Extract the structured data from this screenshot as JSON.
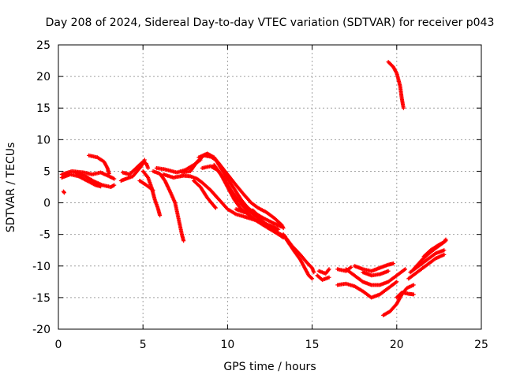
{
  "chart_data": {
    "type": "scatter",
    "title": "Day 208 of 2024, Sidereal Day-to-day VTEC variation (SDTVAR) for receiver p043",
    "xlabel": "GPS time / hours",
    "ylabel": "SDTVAR / TECUs",
    "xlim": [
      0,
      25
    ],
    "ylim": [
      -20,
      25
    ],
    "xticks": [
      "0",
      "5",
      "10",
      "15",
      "20",
      "25"
    ],
    "yticks": [
      "-20",
      "-15",
      "-10",
      "-5",
      "0",
      "5",
      "10",
      "15",
      "20",
      "25"
    ],
    "grid": true,
    "marker": "+",
    "color": "#ff0000",
    "series": [
      {
        "name": "arc-1",
        "points": [
          [
            0.2,
            4.5
          ],
          [
            0.8,
            5.0
          ],
          [
            1.5,
            4.8
          ],
          [
            2.0,
            4.5
          ],
          [
            2.5,
            4.8
          ],
          [
            3.0,
            4.2
          ],
          [
            3.3,
            3.8
          ]
        ]
      },
      {
        "name": "arc-2",
        "points": [
          [
            0.2,
            4.0
          ],
          [
            0.7,
            4.5
          ],
          [
            1.2,
            4.2
          ],
          [
            1.7,
            3.5
          ],
          [
            2.2,
            2.8
          ],
          [
            2.5,
            2.6
          ]
        ]
      },
      {
        "name": "arc-3",
        "points": [
          [
            0.3,
            1.8
          ],
          [
            0.35,
            1.6
          ]
        ]
      },
      {
        "name": "arc-4",
        "points": [
          [
            1.0,
            4.8
          ],
          [
            1.6,
            4.2
          ],
          [
            2.1,
            3.4
          ],
          [
            2.6,
            2.8
          ],
          [
            3.1,
            2.5
          ],
          [
            3.3,
            2.8
          ]
        ]
      },
      {
        "name": "arc-5",
        "points": [
          [
            1.8,
            7.5
          ],
          [
            2.3,
            7.2
          ],
          [
            2.7,
            6.5
          ],
          [
            2.9,
            5.5
          ],
          [
            3.0,
            4.6
          ]
        ]
      },
      {
        "name": "arc-6",
        "points": [
          [
            3.8,
            4.8
          ],
          [
            4.2,
            4.5
          ],
          [
            4.6,
            5.5
          ],
          [
            5.0,
            6.5
          ],
          [
            5.2,
            6.2
          ],
          [
            5.3,
            5.5
          ]
        ]
      },
      {
        "name": "arc-7",
        "points": [
          [
            3.7,
            3.5
          ],
          [
            4.0,
            3.8
          ],
          [
            4.4,
            4.2
          ],
          [
            4.9,
            5.8
          ],
          [
            5.1,
            6.8
          ]
        ]
      },
      {
        "name": "arc-8",
        "points": [
          [
            5.0,
            5.0
          ],
          [
            5.3,
            4.0
          ],
          [
            5.5,
            2.5
          ],
          [
            5.7,
            0.5
          ],
          [
            5.9,
            -1.0
          ],
          [
            6.0,
            -2.0
          ]
        ]
      },
      {
        "name": "arc-9",
        "points": [
          [
            4.8,
            3.5
          ],
          [
            5.2,
            2.8
          ],
          [
            5.6,
            2.0
          ]
        ]
      },
      {
        "name": "arc-10",
        "points": [
          [
            5.6,
            5.0
          ],
          [
            6.0,
            4.6
          ],
          [
            6.3,
            3.5
          ],
          [
            6.6,
            1.8
          ],
          [
            6.9,
            0.0
          ],
          [
            7.1,
            -2.5
          ],
          [
            7.3,
            -5.0
          ],
          [
            7.4,
            -6.0
          ]
        ]
      },
      {
        "name": "arc-11",
        "points": [
          [
            5.8,
            5.5
          ],
          [
            6.3,
            5.3
          ],
          [
            7.0,
            4.8
          ],
          [
            7.5,
            5.2
          ],
          [
            8.0,
            6.0
          ],
          [
            8.4,
            6.8
          ]
        ]
      },
      {
        "name": "arc-12",
        "points": [
          [
            6.2,
            4.5
          ],
          [
            6.8,
            4.0
          ],
          [
            7.4,
            4.3
          ],
          [
            7.8,
            4.2
          ],
          [
            8.2,
            3.8
          ],
          [
            8.5,
            3.2
          ],
          [
            9.0,
            2.0
          ],
          [
            9.5,
            0.5
          ],
          [
            10.0,
            -1.0
          ],
          [
            10.5,
            -1.8
          ],
          [
            11.0,
            -2.2
          ],
          [
            11.6,
            -2.7
          ],
          [
            12.2,
            -3.3
          ],
          [
            12.7,
            -3.8
          ],
          [
            13.0,
            -4.2
          ]
        ]
      },
      {
        "name": "arc-13",
        "points": [
          [
            7.3,
            4.8
          ],
          [
            7.8,
            5.0
          ],
          [
            8.2,
            6.5
          ],
          [
            8.6,
            7.5
          ],
          [
            9.0,
            7.3
          ],
          [
            9.3,
            6.8
          ],
          [
            9.6,
            5.5
          ],
          [
            10.0,
            3.8
          ],
          [
            10.4,
            2.2
          ],
          [
            10.8,
            0.5
          ],
          [
            11.2,
            -0.8
          ],
          [
            11.6,
            -1.6
          ],
          [
            12.1,
            -2.4
          ],
          [
            12.7,
            -3.2
          ],
          [
            13.2,
            -3.8
          ]
        ]
      },
      {
        "name": "arc-14",
        "points": [
          [
            8.3,
            7.2
          ],
          [
            8.8,
            7.8
          ],
          [
            9.2,
            7.2
          ],
          [
            9.5,
            6.2
          ],
          [
            10.0,
            4.5
          ],
          [
            10.5,
            2.8
          ],
          [
            11.0,
            1.2
          ],
          [
            11.4,
            0.0
          ],
          [
            11.8,
            -0.8
          ],
          [
            12.3,
            -1.5
          ],
          [
            12.8,
            -2.5
          ],
          [
            13.2,
            -3.5
          ],
          [
            13.3,
            -4.0
          ]
        ]
      },
      {
        "name": "arc-15",
        "points": [
          [
            8.5,
            5.5
          ],
          [
            9.0,
            5.8
          ],
          [
            9.4,
            5.2
          ],
          [
            9.8,
            3.8
          ],
          [
            10.2,
            2.0
          ],
          [
            10.6,
            0.5
          ],
          [
            11.0,
            -0.8
          ],
          [
            11.5,
            -1.8
          ],
          [
            12.0,
            -2.8
          ],
          [
            12.5,
            -3.8
          ],
          [
            13.0,
            -4.8
          ],
          [
            13.4,
            -5.3
          ]
        ]
      },
      {
        "name": "arc-16",
        "points": [
          [
            8.0,
            3.5
          ],
          [
            8.4,
            2.5
          ],
          [
            8.8,
            0.8
          ],
          [
            9.2,
            -0.5
          ],
          [
            9.3,
            -0.8
          ]
        ]
      },
      {
        "name": "arc-17",
        "points": [
          [
            9.2,
            6.0
          ],
          [
            9.6,
            4.5
          ],
          [
            10.0,
            2.5
          ],
          [
            10.4,
            0.5
          ],
          [
            10.8,
            -1.0
          ],
          [
            11.3,
            -2.0
          ],
          [
            11.8,
            -3.0
          ],
          [
            12.4,
            -4.0
          ],
          [
            12.9,
            -4.8
          ],
          [
            13.3,
            -5.5
          ]
        ]
      },
      {
        "name": "arc-18",
        "points": [
          [
            10.5,
            -1.0
          ],
          [
            11.0,
            -1.5
          ],
          [
            11.5,
            -1.2
          ],
          [
            11.8,
            -2.0
          ]
        ]
      },
      {
        "name": "arc-19",
        "points": [
          [
            13.3,
            -5.0
          ],
          [
            13.8,
            -6.8
          ],
          [
            14.3,
            -8.2
          ],
          [
            14.7,
            -9.5
          ],
          [
            15.0,
            -10.3
          ],
          [
            15.1,
            -11.0
          ]
        ]
      },
      {
        "name": "arc-20",
        "points": [
          [
            13.4,
            -5.5
          ],
          [
            13.9,
            -7.5
          ],
          [
            14.3,
            -9.0
          ],
          [
            14.6,
            -10.5
          ],
          [
            14.8,
            -11.5
          ],
          [
            15.0,
            -12.0
          ]
        ]
      },
      {
        "name": "arc-21",
        "points": [
          [
            15.3,
            -11.5
          ],
          [
            15.6,
            -12.2
          ],
          [
            16.0,
            -11.8
          ]
        ]
      },
      {
        "name": "arc-22",
        "points": [
          [
            15.4,
            -10.8
          ],
          [
            15.8,
            -11.2
          ],
          [
            16.0,
            -10.5
          ]
        ]
      },
      {
        "name": "arc-23",
        "points": [
          [
            16.5,
            -10.5
          ],
          [
            17.0,
            -10.8
          ],
          [
            17.3,
            -10.2
          ]
        ]
      },
      {
        "name": "arc-24",
        "points": [
          [
            16.5,
            -13.0
          ],
          [
            17.0,
            -12.8
          ],
          [
            17.5,
            -13.2
          ],
          [
            18.0,
            -14.0
          ],
          [
            18.5,
            -15.0
          ],
          [
            19.0,
            -14.5
          ],
          [
            19.5,
            -13.5
          ],
          [
            20.0,
            -12.5
          ]
        ]
      },
      {
        "name": "arc-25",
        "points": [
          [
            17.0,
            -10.5
          ],
          [
            17.5,
            -11.5
          ],
          [
            18.0,
            -12.5
          ],
          [
            18.5,
            -13.0
          ],
          [
            19.0,
            -13.0
          ],
          [
            19.5,
            -12.5
          ],
          [
            20.0,
            -11.5
          ],
          [
            20.5,
            -10.5
          ]
        ]
      },
      {
        "name": "arc-26",
        "points": [
          [
            17.5,
            -10.0
          ],
          [
            18.0,
            -10.5
          ],
          [
            18.5,
            -10.8
          ],
          [
            19.0,
            -10.3
          ],
          [
            19.5,
            -9.8
          ],
          [
            19.8,
            -9.6
          ]
        ]
      },
      {
        "name": "arc-27",
        "points": [
          [
            18.0,
            -11.0
          ],
          [
            18.5,
            -11.5
          ],
          [
            19.0,
            -11.3
          ],
          [
            19.5,
            -10.8
          ]
        ]
      },
      {
        "name": "arc-28",
        "points": [
          [
            19.2,
            -17.8
          ],
          [
            19.6,
            -17.2
          ],
          [
            20.0,
            -16.0
          ],
          [
            20.3,
            -14.5
          ],
          [
            20.6,
            -13.5
          ],
          [
            21.0,
            -13.0
          ]
        ]
      },
      {
        "name": "arc-29",
        "points": [
          [
            20.0,
            -15.0
          ],
          [
            20.3,
            -14.2
          ],
          [
            20.7,
            -14.4
          ],
          [
            21.0,
            -14.5
          ]
        ]
      },
      {
        "name": "arc-30",
        "points": [
          [
            20.8,
            -11.0
          ],
          [
            21.3,
            -10.0
          ],
          [
            21.8,
            -9.0
          ],
          [
            22.3,
            -8.0
          ],
          [
            22.8,
            -7.5
          ]
        ]
      },
      {
        "name": "arc-31",
        "points": [
          [
            20.7,
            -12.0
          ],
          [
            21.2,
            -11.0
          ],
          [
            21.8,
            -9.8
          ],
          [
            22.3,
            -8.8
          ],
          [
            22.8,
            -8.2
          ]
        ]
      },
      {
        "name": "arc-32",
        "points": [
          [
            21.0,
            -10.5
          ],
          [
            21.5,
            -9.0
          ],
          [
            22.0,
            -7.8
          ],
          [
            22.5,
            -6.8
          ],
          [
            22.9,
            -6.0
          ]
        ]
      },
      {
        "name": "arc-33",
        "points": [
          [
            21.6,
            -8.5
          ],
          [
            22.0,
            -7.5
          ],
          [
            22.4,
            -6.8
          ],
          [
            22.8,
            -6.2
          ],
          [
            22.9,
            -5.8
          ]
        ]
      },
      {
        "name": "arc-34",
        "points": [
          [
            19.5,
            22.3
          ],
          [
            19.8,
            21.5
          ],
          [
            20.0,
            20.5
          ],
          [
            20.2,
            18.5
          ],
          [
            20.3,
            16.5
          ],
          [
            20.4,
            15.0
          ]
        ]
      }
    ]
  }
}
